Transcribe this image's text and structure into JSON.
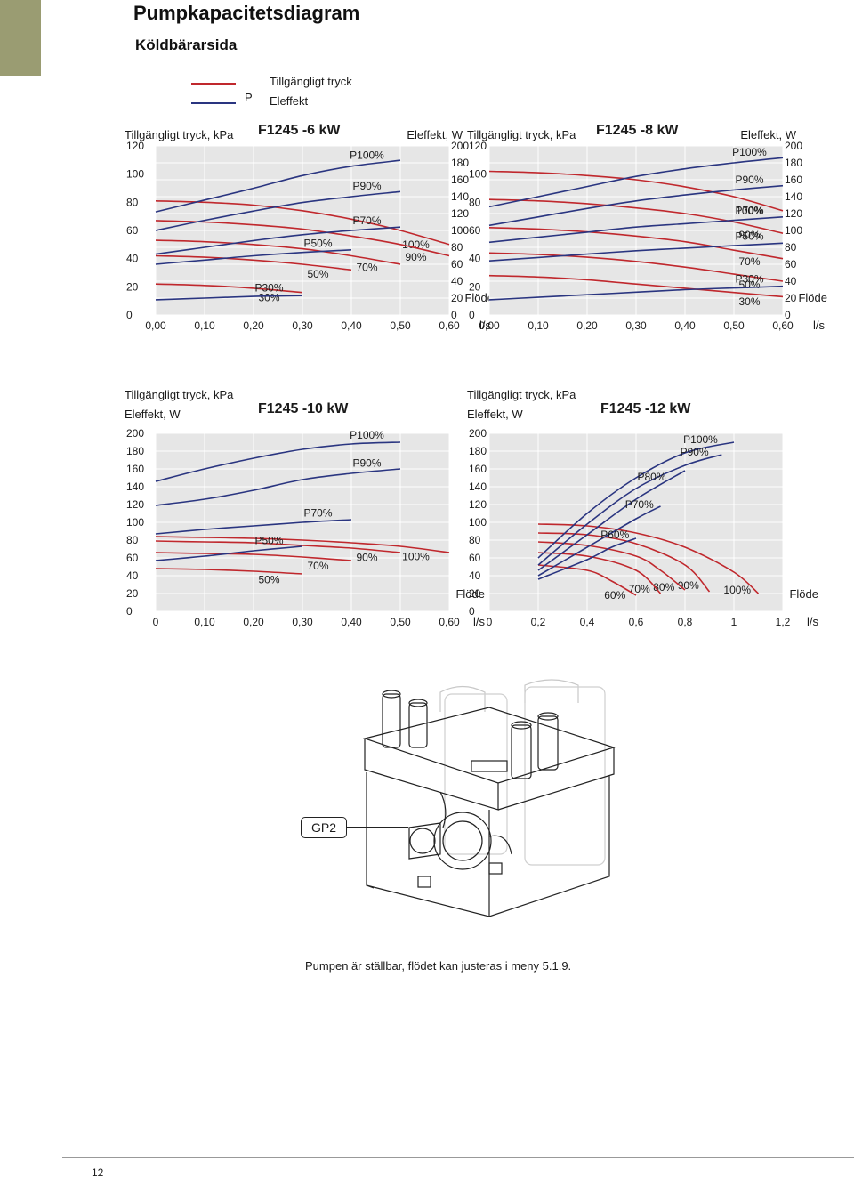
{
  "page": {
    "title": "Pumpkapacitetsdiagram",
    "subtitle": "Köldbärarsida",
    "legend": [
      {
        "symbol": "P",
        "label": "Tillgängligt tryck",
        "color": "#c0282d"
      },
      {
        "symbol": "",
        "label": "Eleffekt",
        "color": "#2a3580"
      }
    ],
    "caption": "Pumpen är ställbar, flödet kan justeras i meny 5.1.9.",
    "page_number": "12",
    "illustration": {
      "label": "GP2",
      "icon": "pump-module-illustration"
    },
    "colors": {
      "pressure": "#c0282d",
      "power": "#2a3580",
      "plot_bg": "#e6e6e6",
      "grid": "#ffffff",
      "accent_block": "#9a9c72"
    }
  },
  "chart_data": [
    {
      "type": "line",
      "title": "F1245 -6 kW",
      "ylabel": "Tillgängligt tryck, kPa",
      "y2label": "Eleffekt, W",
      "xlabel": "Flöde",
      "xunit": "l/s",
      "xlim": [
        0,
        0.6
      ],
      "ylim": [
        0,
        120
      ],
      "y2lim": [
        0,
        200
      ],
      "xticks": [
        "0,00",
        "0,10",
        "0,20",
        "0,30",
        "0,40",
        "0,50",
        "0,60"
      ],
      "yticks": [
        "0",
        "20",
        "40",
        "60",
        "80",
        "100",
        "120"
      ],
      "y2ticks": [
        "0",
        "20",
        "40",
        "60",
        "80",
        "100",
        "120",
        "140",
        "160",
        "180",
        "200"
      ],
      "grid": true,
      "series": [
        {
          "name": "100%",
          "axis": "pressure",
          "x": [
            0.0,
            0.1,
            0.2,
            0.3,
            0.4,
            0.5,
            0.6
          ],
          "y": [
            81,
            80,
            78,
            74,
            68,
            60,
            50
          ]
        },
        {
          "name": "90%",
          "axis": "pressure",
          "x": [
            0.0,
            0.1,
            0.2,
            0.3,
            0.4,
            0.5,
            0.6
          ],
          "y": [
            67,
            66,
            64,
            61,
            56,
            50,
            42
          ]
        },
        {
          "name": "70%",
          "axis": "pressure",
          "x": [
            0.0,
            0.1,
            0.2,
            0.3,
            0.4,
            0.5
          ],
          "y": [
            53,
            52,
            50,
            47,
            42,
            36
          ]
        },
        {
          "name": "50%",
          "axis": "pressure",
          "x": [
            0.0,
            0.1,
            0.2,
            0.3,
            0.4
          ],
          "y": [
            42,
            41,
            39,
            36,
            32
          ]
        },
        {
          "name": "30%",
          "axis": "pressure",
          "x": [
            0.0,
            0.1,
            0.2,
            0.3
          ],
          "y": [
            22,
            21,
            19,
            16
          ]
        },
        {
          "name": "P100%",
          "axis": "power",
          "x": [
            0.0,
            0.1,
            0.2,
            0.3,
            0.4,
            0.5
          ],
          "y": [
            122,
            136,
            150,
            165,
            176,
            183
          ]
        },
        {
          "name": "P90%",
          "axis": "power",
          "x": [
            0.0,
            0.1,
            0.2,
            0.3,
            0.4,
            0.5
          ],
          "y": [
            100,
            112,
            123,
            133,
            140,
            146
          ]
        },
        {
          "name": "P70%",
          "axis": "power",
          "x": [
            0.0,
            0.1,
            0.2,
            0.3,
            0.4,
            0.5
          ],
          "y": [
            72,
            80,
            88,
            95,
            100,
            104
          ]
        },
        {
          "name": "P50%",
          "axis": "power",
          "x": [
            0.0,
            0.1,
            0.2,
            0.3,
            0.4
          ],
          "y": [
            60,
            65,
            70,
            74,
            77
          ]
        },
        {
          "name": "P30%",
          "axis": "power",
          "x": [
            0.0,
            0.1,
            0.2,
            0.3
          ],
          "y": [
            18,
            20,
            22,
            23
          ]
        }
      ]
    },
    {
      "type": "line",
      "title": "F1245 -8 kW",
      "ylabel": "Tillgängligt tryck, kPa",
      "y2label": "Eleffekt, W",
      "xlabel": "Flöde",
      "xunit": "l/s",
      "xlim": [
        0,
        0.6
      ],
      "ylim": [
        0,
        120
      ],
      "y2lim": [
        0,
        200
      ],
      "xticks": [
        "0,00",
        "0,10",
        "0,20",
        "0,30",
        "0,40",
        "0,50",
        "0,60"
      ],
      "yticks": [
        "0",
        "20",
        "40",
        "60",
        "80",
        "100",
        "120"
      ],
      "y2ticks": [
        "0",
        "20",
        "40",
        "60",
        "80",
        "100",
        "120",
        "140",
        "160",
        "180",
        "200"
      ],
      "grid": true,
      "series": [
        {
          "name": "100%",
          "axis": "pressure",
          "x": [
            0.0,
            0.1,
            0.2,
            0.3,
            0.4,
            0.5,
            0.6
          ],
          "y": [
            102,
            101,
            99,
            96,
            91,
            84,
            74
          ]
        },
        {
          "name": "90%",
          "axis": "pressure",
          "x": [
            0.0,
            0.1,
            0.2,
            0.3,
            0.4,
            0.5,
            0.6
          ],
          "y": [
            82,
            81,
            79,
            76,
            72,
            66,
            58
          ]
        },
        {
          "name": "70%",
          "axis": "pressure",
          "x": [
            0.0,
            0.1,
            0.2,
            0.3,
            0.4,
            0.5,
            0.6
          ],
          "y": [
            62,
            61,
            59,
            56,
            52,
            46,
            40
          ]
        },
        {
          "name": "50%",
          "axis": "pressure",
          "x": [
            0.0,
            0.1,
            0.2,
            0.3,
            0.4,
            0.5,
            0.6
          ],
          "y": [
            44,
            43,
            41,
            38,
            34,
            29,
            24
          ]
        },
        {
          "name": "30%",
          "axis": "pressure",
          "x": [
            0.0,
            0.1,
            0.2,
            0.3,
            0.4,
            0.5,
            0.6
          ],
          "y": [
            28,
            27,
            25,
            22,
            19,
            16,
            13
          ]
        },
        {
          "name": "P100%",
          "axis": "power",
          "x": [
            0.0,
            0.1,
            0.2,
            0.3,
            0.4,
            0.5,
            0.6
          ],
          "y": [
            128,
            140,
            152,
            164,
            173,
            180,
            186
          ]
        },
        {
          "name": "P90%",
          "axis": "power",
          "x": [
            0.0,
            0.1,
            0.2,
            0.3,
            0.4,
            0.5,
            0.6
          ],
          "y": [
            106,
            116,
            126,
            135,
            142,
            148,
            153
          ]
        },
        {
          "name": "P70%",
          "axis": "power",
          "x": [
            0.0,
            0.1,
            0.2,
            0.3,
            0.4,
            0.5,
            0.6
          ],
          "y": [
            86,
            92,
            98,
            104,
            108,
            112,
            116
          ]
        },
        {
          "name": "P50%",
          "axis": "power",
          "x": [
            0.0,
            0.1,
            0.2,
            0.3,
            0.4,
            0.5,
            0.6
          ],
          "y": [
            64,
            68,
            72,
            76,
            79,
            82,
            85
          ]
        },
        {
          "name": "P30%",
          "axis": "power",
          "x": [
            0.0,
            0.1,
            0.2,
            0.3,
            0.4,
            0.5,
            0.6
          ],
          "y": [
            18,
            21,
            24,
            27,
            30,
            32,
            34
          ]
        }
      ]
    },
    {
      "type": "line",
      "title": "F1245 -10 kW",
      "ylabel": "Tillgängligt tryck, kPa",
      "y2label": "Eleffekt, W",
      "xlabel": "Flöde",
      "xunit": "l/s",
      "xlim": [
        0,
        0.6
      ],
      "ylim": [
        0,
        200
      ],
      "xticks": [
        "0",
        "0,10",
        "0,20",
        "0,30",
        "0,40",
        "0,50",
        "0,60"
      ],
      "yticks": [
        "0",
        "20",
        "40",
        "60",
        "80",
        "100",
        "120",
        "140",
        "160",
        "180",
        "200"
      ],
      "grid": true,
      "series": [
        {
          "name": "100%",
          "axis": "pressure",
          "x": [
            0.0,
            0.1,
            0.2,
            0.3,
            0.4,
            0.5,
            0.6
          ],
          "y": [
            84,
            83,
            82,
            80,
            77,
            73,
            66
          ]
        },
        {
          "name": "90%",
          "axis": "pressure",
          "x": [
            0.0,
            0.1,
            0.2,
            0.3,
            0.4,
            0.5
          ],
          "y": [
            79,
            78,
            77,
            74,
            71,
            66
          ]
        },
        {
          "name": "70%",
          "axis": "pressure",
          "x": [
            0.0,
            0.1,
            0.2,
            0.3,
            0.4
          ],
          "y": [
            66,
            65,
            64,
            61,
            57
          ]
        },
        {
          "name": "50%",
          "axis": "pressure",
          "x": [
            0.0,
            0.1,
            0.2,
            0.3
          ],
          "y": [
            48,
            47,
            45,
            42
          ]
        },
        {
          "name": "P100%",
          "axis": "power",
          "x": [
            0.0,
            0.1,
            0.2,
            0.3,
            0.4,
            0.5
          ],
          "y": [
            146,
            160,
            172,
            182,
            188,
            190
          ]
        },
        {
          "name": "P90%",
          "axis": "power",
          "x": [
            0.0,
            0.1,
            0.2,
            0.3,
            0.4,
            0.5
          ],
          "y": [
            119,
            126,
            136,
            148,
            155,
            160
          ]
        },
        {
          "name": "P70%",
          "axis": "power",
          "x": [
            0.0,
            0.1,
            0.2,
            0.3,
            0.4
          ],
          "y": [
            87,
            92,
            96,
            100,
            103
          ]
        },
        {
          "name": "P50%",
          "axis": "power",
          "x": [
            0.0,
            0.1,
            0.2,
            0.3
          ],
          "y": [
            57,
            62,
            68,
            73
          ]
        }
      ]
    },
    {
      "type": "line",
      "title": "F1245 -12 kW",
      "ylabel": "Tillgängligt tryck, kPa",
      "y2label": "Eleffekt, W",
      "xlabel": "Flöde",
      "xunit": "l/s",
      "xlim": [
        0,
        1.2
      ],
      "ylim": [
        0,
        200
      ],
      "xticks": [
        "0",
        "0,2",
        "0,4",
        "0,6",
        "0,8",
        "1",
        "1,2"
      ],
      "yticks": [
        "0",
        "20",
        "40",
        "60",
        "80",
        "100",
        "120",
        "140",
        "160",
        "180",
        "200"
      ],
      "grid": true,
      "series": [
        {
          "name": "100%",
          "axis": "pressure",
          "x": [
            0.2,
            0.4,
            0.6,
            0.8,
            1.0,
            1.1
          ],
          "y": [
            98,
            96,
            88,
            72,
            44,
            20
          ]
        },
        {
          "name": "90%",
          "axis": "pressure",
          "x": [
            0.2,
            0.4,
            0.6,
            0.8,
            0.9
          ],
          "y": [
            88,
            86,
            76,
            52,
            22
          ]
        },
        {
          "name": "80%",
          "axis": "pressure",
          "x": [
            0.2,
            0.4,
            0.6,
            0.7,
            0.8
          ],
          "y": [
            78,
            74,
            62,
            46,
            24
          ]
        },
        {
          "name": "70%",
          "axis": "pressure",
          "x": [
            0.2,
            0.4,
            0.6,
            0.7
          ],
          "y": [
            66,
            62,
            46,
            20
          ]
        },
        {
          "name": "60%",
          "axis": "pressure",
          "x": [
            0.2,
            0.4,
            0.5,
            0.6
          ],
          "y": [
            52,
            46,
            34,
            18
          ]
        },
        {
          "name": "P100%",
          "axis": "power",
          "x": [
            0.2,
            0.4,
            0.6,
            0.8,
            1.0
          ],
          "y": [
            60,
            110,
            150,
            178,
            190
          ]
        },
        {
          "name": "P90%",
          "axis": "power",
          "x": [
            0.2,
            0.4,
            0.6,
            0.8,
            0.95
          ],
          "y": [
            52,
            98,
            138,
            164,
            176
          ]
        },
        {
          "name": "P80%",
          "axis": "power",
          "x": [
            0.2,
            0.4,
            0.6,
            0.8
          ],
          "y": [
            46,
            86,
            126,
            158
          ]
        },
        {
          "name": "P70%",
          "axis": "power",
          "x": [
            0.2,
            0.4,
            0.6,
            0.7
          ],
          "y": [
            40,
            72,
            104,
            118
          ]
        },
        {
          "name": "P60%",
          "axis": "power",
          "x": [
            0.2,
            0.4,
            0.5,
            0.6
          ],
          "y": [
            36,
            58,
            72,
            82
          ]
        }
      ]
    }
  ]
}
